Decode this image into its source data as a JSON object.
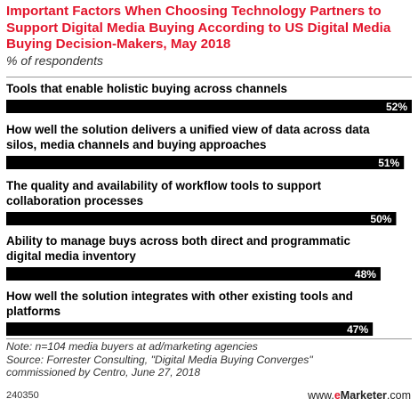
{
  "header": {
    "title": "Important Factors When Choosing Technology Partners to Support Digital Media Buying According to US Digital Media Buying Decision-Makers, May 2018",
    "subtitle": "% of respondents"
  },
  "chart_data": {
    "type": "bar",
    "orientation": "horizontal",
    "categories": [
      "Tools that enable holistic buying across channels",
      "How well the solution delivers a unified view of data across data silos, media channels and buying approaches",
      "The quality and availability of workflow tools to support collaboration processes",
      "Ability to manage buys across both direct and programmatic digital media inventory",
      "How well the solution integrates with other existing tools and platforms"
    ],
    "category_lines": [
      [
        "Tools that enable holistic buying across channels"
      ],
      [
        "How well the solution delivers a unified view of data across data",
        "silos, media channels and buying approaches"
      ],
      [
        "The quality and availability of workflow tools to support",
        "collaboration processes"
      ],
      [
        "Ability to manage buys across both direct and programmatic",
        "digital media inventory"
      ],
      [
        "How well the solution integrates with other existing tools and",
        "platforms"
      ]
    ],
    "values": [
      52,
      51,
      50,
      48,
      47
    ],
    "value_labels": [
      "52%",
      "51%",
      "50%",
      "48%",
      "47%"
    ],
    "xlim": [
      0,
      52
    ],
    "bar_color": "#000000",
    "grid": false
  },
  "footer": {
    "note": "Note: n=104 media buyers at ad/marketing agencies",
    "source_line1": "Source: Forrester Consulting, \"Digital Media Buying Converges\"",
    "source_line2": "commissioned by Centro, June 27, 2018",
    "chart_id": "240350",
    "brand_prefix": "www.",
    "brand_e": "e",
    "brand_name": "Marketer",
    "brand_suffix": ".com"
  },
  "colors": {
    "title": "#e2162c",
    "bar": "#000000",
    "value_text": "#ffffff"
  }
}
